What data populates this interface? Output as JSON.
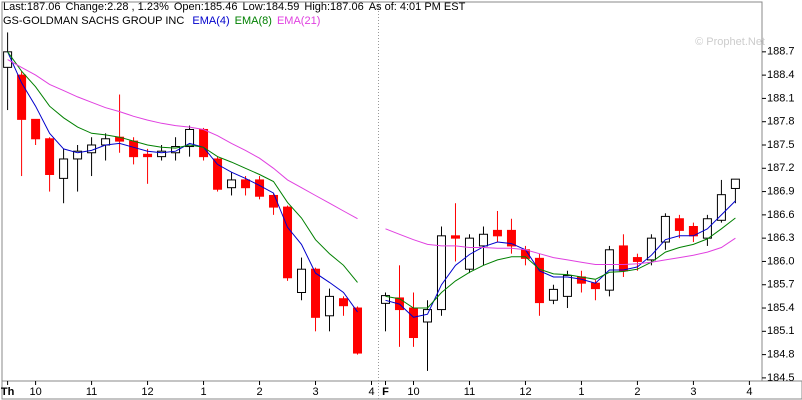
{
  "chart_data": {
    "type": "candlestick",
    "header": [
      "Last:187.06",
      "Change:2.28 , 1.23%",
      "Open:185.46",
      "Low:184.59",
      "High:187.06",
      "As of: 4:01 PM EST"
    ],
    "title": "GS-GOLDMAN SACHS GROUP INC",
    "watermark": "© Prophet.Net",
    "up_color": "#ffffff",
    "down_color": "#ff0000",
    "x": [
      0,
      1,
      2,
      3,
      4,
      5,
      6,
      7,
      8,
      9,
      10,
      11,
      12,
      13,
      14,
      15,
      16,
      17,
      18,
      19,
      20,
      21,
      22,
      23,
      24,
      25,
      26,
      27,
      28,
      29,
      30,
      31,
      32,
      33,
      34,
      35,
      36,
      37,
      38,
      39,
      40,
      41,
      42,
      43,
      44,
      45,
      46,
      47,
      48,
      49,
      50,
      51,
      52
    ],
    "open": [
      188.5,
      188.4,
      187.83,
      187.58,
      187.07,
      187.32,
      187.4,
      187.5,
      187.6,
      187.55,
      187.38,
      187.35,
      187.4,
      187.48,
      187.7,
      187.32,
      186.95,
      187.05,
      187.05,
      186.85,
      186.7,
      185.6,
      185.9,
      185.3,
      185.52,
      185.4,
      null,
      185.46,
      185.53,
      185.4,
      185.22,
      185.38,
      186.33,
      185.9,
      186.2,
      186.4,
      186.4,
      186.15,
      186.04,
      185.5,
      185.55,
      185.8,
      185.72,
      185.63,
      186.2,
      186.05,
      186.02,
      186.25,
      186.55,
      186.45,
      186.3,
      186.53,
      186.94
    ],
    "high": [
      188.95,
      188.45,
      187.83,
      187.6,
      187.45,
      187.5,
      187.6,
      187.65,
      188.15,
      187.6,
      187.45,
      187.5,
      187.6,
      187.75,
      187.72,
      187.35,
      187.15,
      187.1,
      187.1,
      186.88,
      186.72,
      186.05,
      185.92,
      185.65,
      185.55,
      185.42,
      null,
      185.6,
      185.95,
      185.6,
      185.5,
      186.45,
      186.75,
      186.35,
      186.45,
      186.65,
      186.55,
      186.2,
      186.1,
      185.7,
      185.88,
      185.88,
      185.76,
      186.2,
      186.35,
      186.1,
      186.35,
      186.62,
      186.6,
      186.5,
      186.6,
      187.05,
      187.06
    ],
    "low": [
      187.95,
      187.1,
      187.5,
      186.9,
      186.75,
      186.9,
      187.1,
      187.3,
      187.4,
      187.25,
      187.0,
      187.3,
      187.3,
      187.35,
      187.3,
      186.9,
      186.85,
      186.85,
      186.8,
      186.6,
      185.75,
      185.5,
      185.1,
      185.1,
      185.3,
      184.8,
      null,
      185.1,
      184.9,
      184.9,
      184.59,
      185.3,
      186.0,
      185.85,
      185.95,
      186.25,
      186.1,
      185.95,
      185.3,
      185.45,
      185.4,
      185.6,
      185.5,
      185.55,
      185.8,
      185.88,
      185.95,
      186.15,
      186.3,
      186.25,
      186.2,
      186.5,
      186.75
    ],
    "close": [
      188.7,
      187.83,
      187.58,
      187.12,
      187.32,
      187.42,
      187.5,
      187.58,
      187.55,
      187.35,
      187.35,
      187.42,
      187.48,
      187.7,
      187.35,
      186.93,
      187.05,
      186.95,
      186.84,
      186.7,
      185.79,
      185.9,
      185.28,
      185.55,
      185.43,
      184.82,
      null,
      185.56,
      185.38,
      185.02,
      185.38,
      186.33,
      186.3,
      186.3,
      186.35,
      186.33,
      186.2,
      186.04,
      185.47,
      185.64,
      185.82,
      185.72,
      185.65,
      186.15,
      185.88,
      186.0,
      186.3,
      186.58,
      186.4,
      186.33,
      186.55,
      186.86,
      187.06
    ],
    "series": [
      {
        "name": "EMA(4)",
        "color": "#0000cc",
        "values": [
          188.7,
          188.3,
          188.0,
          187.65,
          187.45,
          187.4,
          187.43,
          187.5,
          187.52,
          187.47,
          187.42,
          187.4,
          187.42,
          187.52,
          187.47,
          187.25,
          187.15,
          187.07,
          186.98,
          186.88,
          186.44,
          186.22,
          185.85,
          185.73,
          185.6,
          185.35,
          null,
          185.5,
          185.45,
          185.28,
          185.32,
          185.7,
          185.95,
          186.09,
          186.19,
          186.25,
          186.23,
          186.15,
          185.88,
          185.8,
          185.8,
          185.77,
          185.72,
          185.89,
          185.89,
          185.93,
          186.08,
          186.28,
          186.33,
          186.33,
          186.42,
          186.6,
          186.78
        ]
      },
      {
        "name": "EMA(8)",
        "color": "#008000",
        "values": [
          188.7,
          188.45,
          188.25,
          188.0,
          187.85,
          187.73,
          187.65,
          187.63,
          187.6,
          187.55,
          187.5,
          187.47,
          187.46,
          187.5,
          187.47,
          187.35,
          187.28,
          187.2,
          187.12,
          187.03,
          186.76,
          186.56,
          186.28,
          186.1,
          185.95,
          185.73,
          null,
          185.55,
          185.52,
          185.4,
          185.4,
          185.6,
          185.75,
          185.86,
          185.95,
          186.02,
          186.06,
          186.06,
          185.9,
          185.84,
          185.83,
          185.8,
          185.77,
          185.86,
          185.87,
          185.9,
          185.99,
          186.12,
          186.18,
          186.22,
          186.29,
          186.42,
          186.56
        ]
      },
      {
        "name": "EMA(21)",
        "color": "#e040e0",
        "values": [
          188.6,
          188.5,
          188.4,
          188.28,
          188.2,
          188.12,
          188.05,
          187.98,
          187.93,
          187.87,
          187.82,
          187.78,
          187.75,
          187.73,
          187.7,
          187.62,
          187.52,
          187.43,
          187.33,
          187.2,
          187.05,
          186.95,
          186.85,
          186.75,
          186.65,
          186.55,
          null,
          186.42,
          186.35,
          186.28,
          186.22,
          186.2,
          186.2,
          186.18,
          186.18,
          186.17,
          186.17,
          186.15,
          186.1,
          186.05,
          186.02,
          185.99,
          185.96,
          185.96,
          185.96,
          185.97,
          185.99,
          186.02,
          186.05,
          186.08,
          186.12,
          186.18,
          186.3
        ]
      }
    ],
    "xlim": [
      -0.4,
      53.9
    ],
    "xticks": [
      {
        "value": 0,
        "label": "Th"
      },
      {
        "value": 2,
        "label": "10"
      },
      {
        "value": 6,
        "label": "11"
      },
      {
        "value": 10,
        "label": "12"
      },
      {
        "value": 14,
        "label": "1"
      },
      {
        "value": 18,
        "label": "2"
      },
      {
        "value": 22,
        "label": "3"
      },
      {
        "value": 26,
        "label": "4"
      },
      {
        "value": 27,
        "label": "F"
      },
      {
        "value": 29,
        "label": "10"
      },
      {
        "value": 33,
        "label": "11"
      },
      {
        "value": 37,
        "label": "12"
      },
      {
        "value": 41,
        "label": "1"
      },
      {
        "value": 45,
        "label": "2"
      },
      {
        "value": 49,
        "label": "3"
      },
      {
        "value": 53,
        "label": "4"
      }
    ],
    "ylim": [
      184.46,
      189.11
    ],
    "yticks": [
      188.7,
      188.4,
      188.1,
      187.8,
      187.5,
      187.2,
      186.9,
      186.6,
      186.3,
      {
        "value": 186,
        "label": "186.0"
      },
      185.7,
      185.4,
      185.1,
      184.8,
      184.5
    ]
  }
}
